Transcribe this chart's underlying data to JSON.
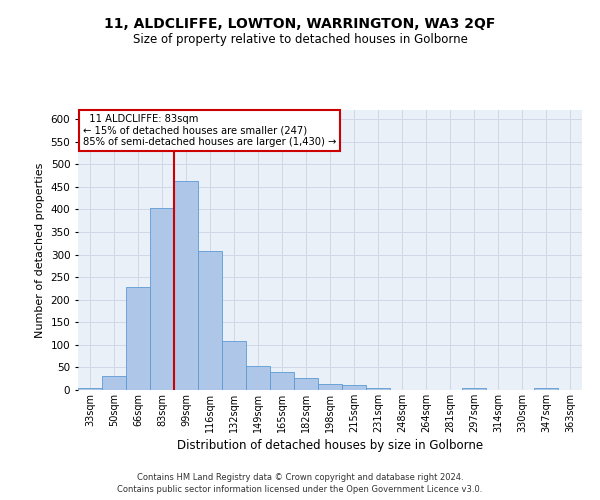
{
  "title": "11, ALDCLIFFE, LOWTON, WARRINGTON, WA3 2QF",
  "subtitle": "Size of property relative to detached houses in Golborne",
  "xlabel": "Distribution of detached houses by size in Golborne",
  "ylabel": "Number of detached properties",
  "footer1": "Contains HM Land Registry data © Crown copyright and database right 2024.",
  "footer2": "Contains public sector information licensed under the Open Government Licence v3.0.",
  "categories": [
    "33sqm",
    "50sqm",
    "66sqm",
    "83sqm",
    "99sqm",
    "116sqm",
    "132sqm",
    "149sqm",
    "165sqm",
    "182sqm",
    "198sqm",
    "215sqm",
    "231sqm",
    "248sqm",
    "264sqm",
    "281sqm",
    "297sqm",
    "314sqm",
    "330sqm",
    "347sqm",
    "363sqm"
  ],
  "values": [
    5,
    30,
    228,
    403,
    463,
    308,
    108,
    53,
    40,
    26,
    13,
    11,
    5,
    0,
    0,
    0,
    5,
    0,
    0,
    5,
    0
  ],
  "bar_color": "#aec6e8",
  "bar_edge_color": "#5b9bd5",
  "grid_color": "#d0d8e8",
  "background_color": "#eaf0f8",
  "property_bin_index": 3,
  "annotation_line1": "  11 ALDCLIFFE: 83sqm",
  "annotation_line2": "← 15% of detached houses are smaller (247)",
  "annotation_line3": "85% of semi-detached houses are larger (1,430) →",
  "annotation_box_color": "#ffffff",
  "annotation_box_edge_color": "#cc0000",
  "vline_color": "#cc0000",
  "ylim": [
    0,
    620
  ],
  "yticks": [
    0,
    50,
    100,
    150,
    200,
    250,
    300,
    350,
    400,
    450,
    500,
    550,
    600
  ]
}
